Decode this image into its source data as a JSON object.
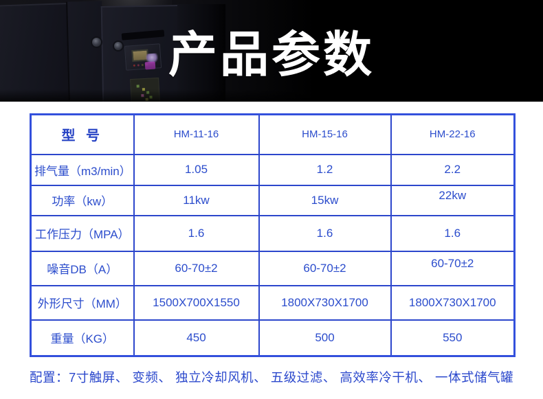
{
  "hero": {
    "title": "产品参数"
  },
  "table": {
    "header": {
      "label": "型  号",
      "models": [
        "HM-11-16",
        "HM-15-16",
        "HM-22-16"
      ]
    },
    "rows": [
      {
        "label": "排气量（m3/min）",
        "values": [
          "1.05",
          "1.2",
          "2.2"
        ]
      },
      {
        "label": "功率（kw）",
        "values": [
          "11kw",
          "15kw",
          "22kw"
        ]
      },
      {
        "label": "工作压力（MPA）",
        "values": [
          "1.6",
          "1.6",
          "1.6"
        ]
      },
      {
        "label": "噪音DB（A）",
        "values": [
          "60-70±2",
          "60-70±2",
          "60-70±2"
        ]
      },
      {
        "label": "外形尺寸（MM）",
        "values": [
          "1500X700X1550",
          "1800X730X1700",
          "1800X730X1700"
        ]
      },
      {
        "label": "重量（KG）",
        "values": [
          "450",
          "500",
          "550"
        ]
      }
    ]
  },
  "footer": {
    "config_note": "配置：7寸触屏、 变频、 独立冷却风机、 五级过滤、 高效率冷干机、 一体式储气罐"
  },
  "colors": {
    "table_border": "#3350dc",
    "table_inner_border": "#2c46cc",
    "table_text": "#2b4ccc",
    "footer_text": "#2b48cc",
    "title_text": "#ffffff",
    "hero_background": "#000000"
  }
}
